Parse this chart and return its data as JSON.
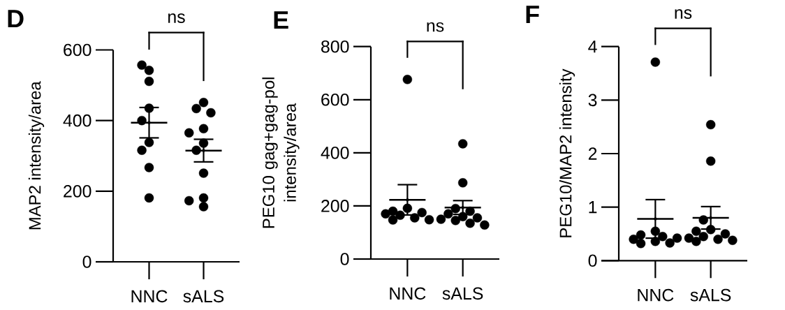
{
  "chart_data": [
    {
      "type": "scatter",
      "title": "D",
      "ylabel": "MAP2 intensity/area",
      "categories": [
        "NNC",
        "sALS"
      ],
      "ylim": [
        0,
        600
      ],
      "yticks": [
        0,
        200,
        400,
        600
      ],
      "annotations": [
        "ns"
      ],
      "series": [
        {
          "marker": "circle",
          "color": "#000000",
          "x": [
            "NNC",
            "NNC",
            "NNC",
            "NNC",
            "NNC",
            "NNC",
            "NNC",
            "NNC",
            "NNC",
            "sALS",
            "sALS",
            "sALS",
            "sALS",
            "sALS",
            "sALS",
            "sALS",
            "sALS",
            "sALS",
            "sALS",
            "sALS"
          ],
          "values": [
            542,
            557,
            511,
            435,
            400,
            338,
            316,
            267,
            181,
            451,
            434,
            422,
            377,
            365,
            336,
            316,
            251,
            181,
            173,
            156
          ]
        },
        {
          "marker": "none",
          "color": "#000000",
          "values": [
            394,
            315
          ],
          "errors": [
            43,
            32
          ]
        }
      ],
      "ref_lines": [
        {
          "axis": "y",
          "value": 394,
          "color": "#000000"
        },
        {
          "axis": "y",
          "value": 315,
          "color": "#000000"
        }
      ]
    },
    {
      "type": "scatter",
      "title": "E",
      "ylabel": "PEG10 gag+gag-pol intensity/area",
      "categories": [
        "NNC",
        "sALS"
      ],
      "ylim": [
        0,
        800
      ],
      "yticks": [
        0,
        200,
        400,
        600,
        800
      ],
      "annotations": [
        "ns"
      ],
      "series": [
        {
          "marker": "circle",
          "color": "#000000",
          "x": [
            "NNC",
            "NNC",
            "NNC",
            "NNC",
            "NNC",
            "NNC",
            "NNC",
            "NNC",
            "NNC",
            "sALS",
            "sALS",
            "sALS",
            "sALS",
            "sALS",
            "sALS",
            "sALS",
            "sALS",
            "sALS",
            "sALS",
            "sALS"
          ],
          "values": [
            676,
            191,
            180,
            175,
            170,
            165,
            155,
            147,
            148,
            434,
            287,
            190,
            180,
            170,
            160,
            155,
            150,
            145,
            135,
            128
          ]
        },
        {
          "marker": "none",
          "color": "#000000",
          "values": [
            223,
            194
          ],
          "errors": [
            57,
            26
          ]
        }
      ],
      "ref_lines": [
        {
          "axis": "y",
          "value": 223,
          "color": "#000000"
        },
        {
          "axis": "y",
          "value": 194,
          "color": "#000000"
        }
      ]
    },
    {
      "type": "scatter",
      "title": "F",
      "ylabel": "PEG10/MAP2 intensity",
      "categories": [
        "NNC",
        "sALS"
      ],
      "ylim": [
        0,
        4
      ],
      "yticks": [
        0,
        1,
        2,
        3,
        4
      ],
      "annotations": [
        "ns"
      ],
      "series": [
        {
          "marker": "circle",
          "color": "#000000",
          "x": [
            "NNC",
            "NNC",
            "NNC",
            "NNC",
            "NNC",
            "NNC",
            "NNC",
            "NNC",
            "NNC",
            "sALS",
            "sALS",
            "sALS",
            "sALS",
            "sALS",
            "sALS",
            "sALS",
            "sALS",
            "sALS",
            "sALS",
            "sALS"
          ],
          "values": [
            3.71,
            0.55,
            0.48,
            0.45,
            0.42,
            0.4,
            0.36,
            0.33,
            0.32,
            2.54,
            1.86,
            0.76,
            0.58,
            0.55,
            0.5,
            0.45,
            0.42,
            0.4,
            0.38,
            0.36
          ]
        },
        {
          "marker": "none",
          "color": "#000000",
          "values": [
            0.78,
            0.8
          ],
          "errors": [
            0.36,
            0.21
          ]
        }
      ],
      "ref_lines": [
        {
          "axis": "y",
          "value": 0.78,
          "color": "#000000"
        },
        {
          "axis": "y",
          "value": 0.8,
          "color": "#000000"
        }
      ]
    }
  ]
}
